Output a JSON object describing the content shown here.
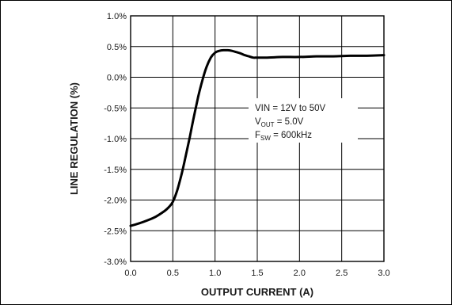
{
  "chart_data": {
    "type": "line",
    "title": "",
    "xlabel": "OUTPUT CURRENT (A)",
    "ylabel": "LINE REGULATION (%)",
    "xlim": [
      0,
      3.0
    ],
    "ylim": [
      -3.0,
      1.0
    ],
    "x_ticks": [
      "0.0",
      "0.5",
      "1.0",
      "1.5",
      "2.0",
      "2.5",
      "3.0"
    ],
    "y_ticks": [
      "1.0%",
      "0.5%",
      "0.0%",
      "-0.5%",
      "-1.0%",
      "-1.5%",
      "-2.0%",
      "-2.5%",
      "-3.0%"
    ],
    "grid": true,
    "line_color": "#000000",
    "series": [
      {
        "x": [
          0.0,
          0.1,
          0.2,
          0.3,
          0.4,
          0.45,
          0.5,
          0.55,
          0.6,
          0.65,
          0.7,
          0.75,
          0.8,
          0.85,
          0.9,
          0.95,
          1.0,
          1.05,
          1.1,
          1.15,
          1.2,
          1.25,
          1.3,
          1.35,
          1.4,
          1.45,
          1.5,
          1.6,
          1.8,
          2.0,
          2.2,
          2.4,
          2.6,
          2.8,
          3.0
        ],
        "y": [
          -2.42,
          -2.38,
          -2.33,
          -2.27,
          -2.18,
          -2.12,
          -2.03,
          -1.85,
          -1.6,
          -1.3,
          -0.98,
          -0.64,
          -0.32,
          -0.05,
          0.17,
          0.32,
          0.4,
          0.43,
          0.44,
          0.44,
          0.43,
          0.41,
          0.39,
          0.36,
          0.34,
          0.32,
          0.32,
          0.32,
          0.33,
          0.33,
          0.34,
          0.34,
          0.35,
          0.35,
          0.36
        ]
      }
    ],
    "annotations": {
      "line1": "VIN = 12V to 50V",
      "line2_main": "V",
      "line2_sub": "OUT",
      "line2_rest": " = 5.0V",
      "line3_main": "F",
      "line3_sub": "SW",
      "line3_rest": " = 600kHz"
    }
  }
}
